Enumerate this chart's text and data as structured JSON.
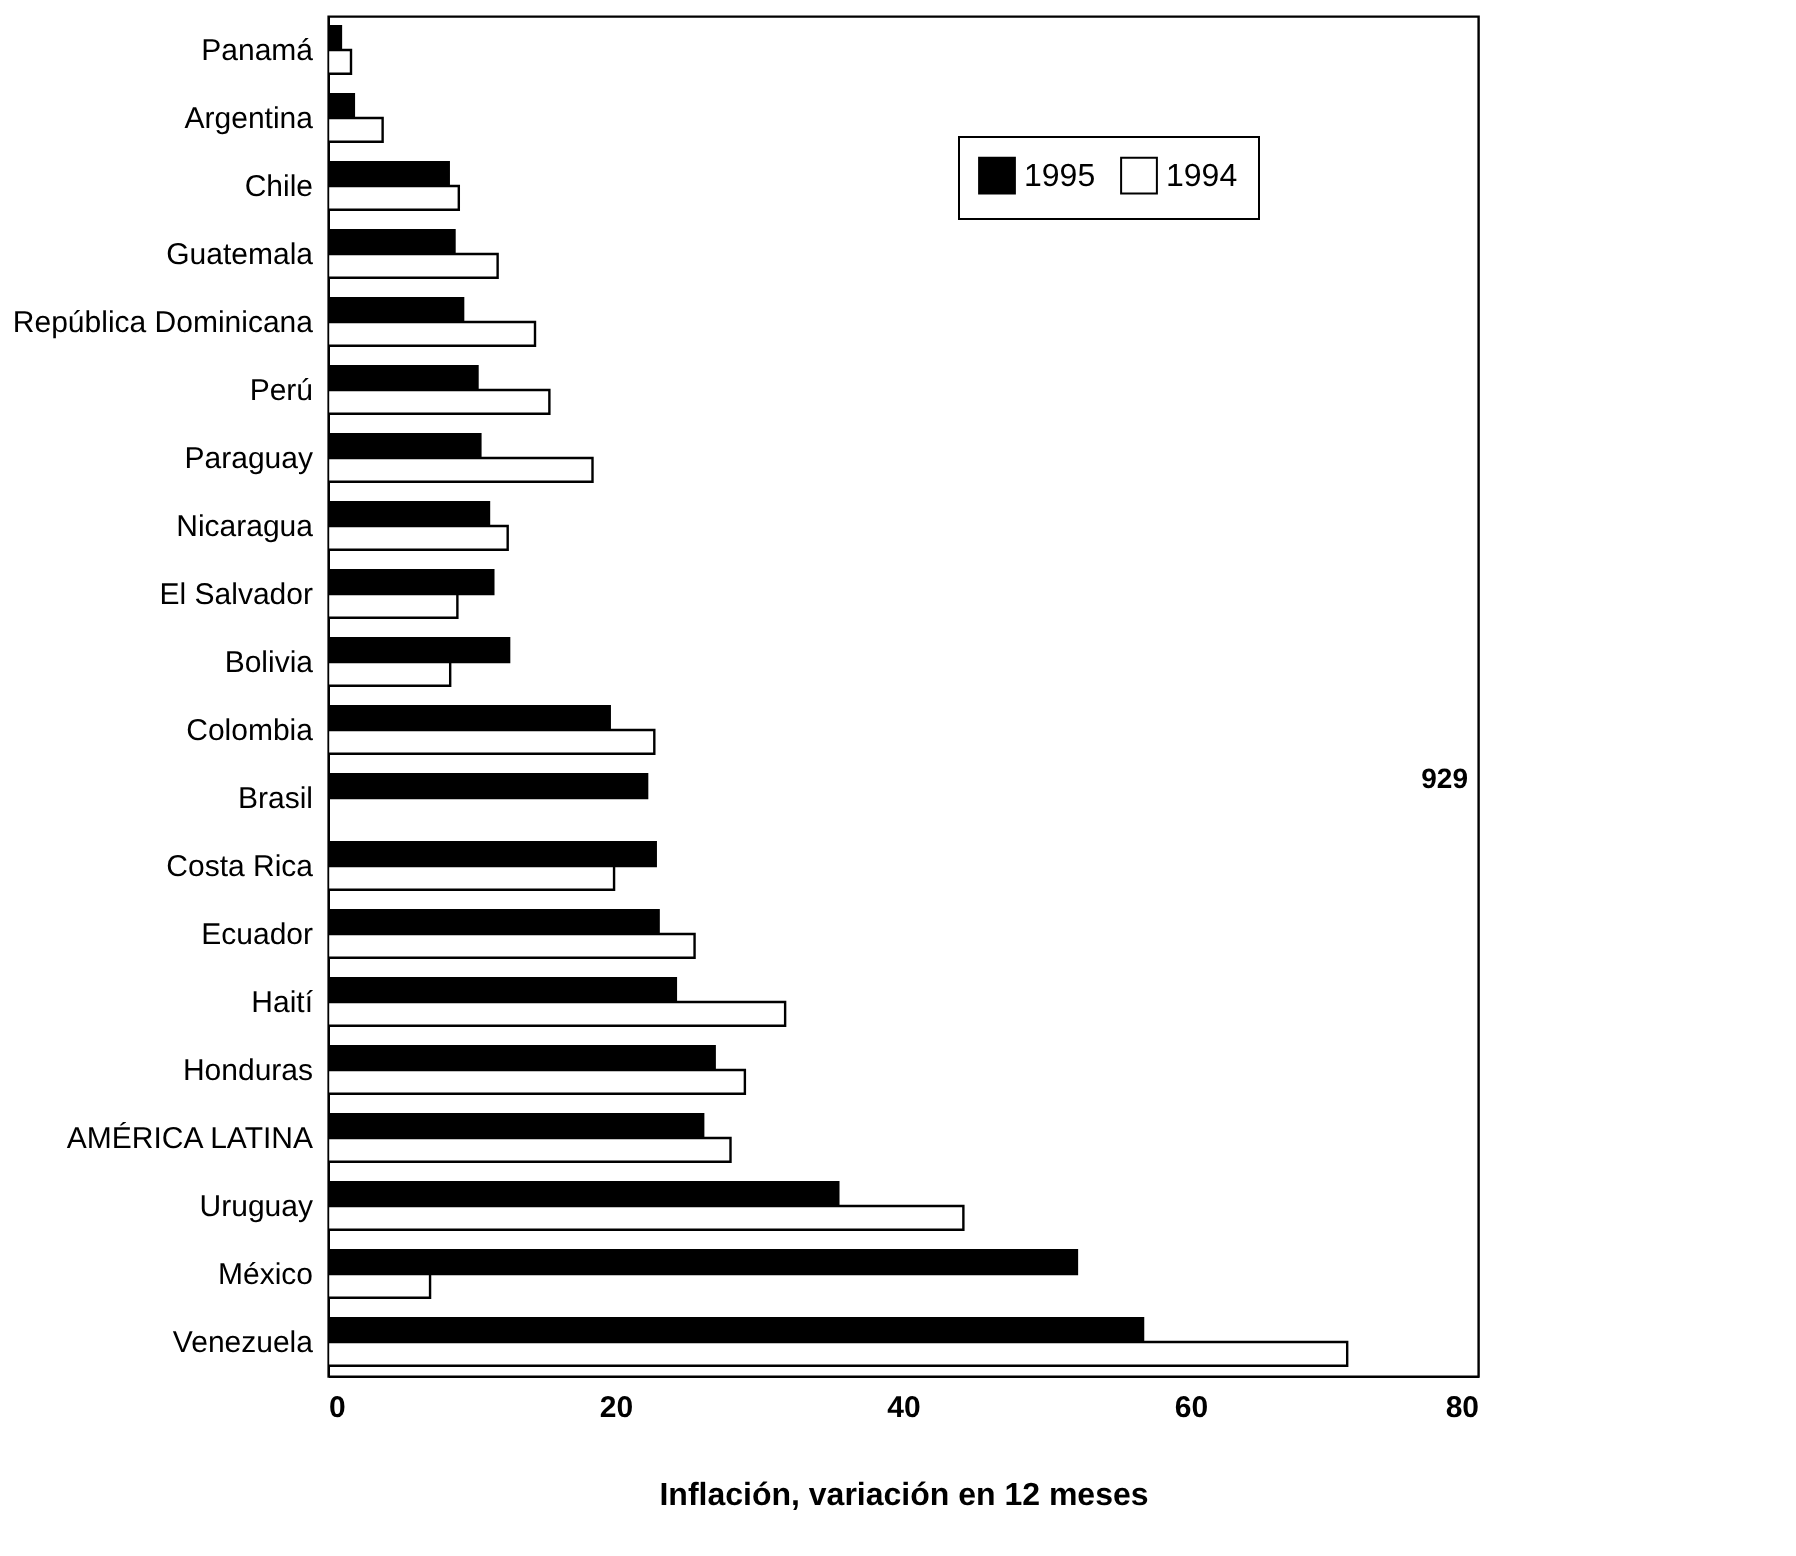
{
  "chart_data": {
    "type": "bar",
    "orientation": "horizontal",
    "xlabel": "Inflación, variación en 12 meses",
    "categories": [
      "Panamá",
      "Argentina",
      "Chile",
      "Guatemala",
      "República Dominicana",
      "Perú",
      "Paraguay",
      "Nicaragua",
      "El Salvador",
      "Bolivia",
      "Colombia",
      "Brasil",
      "Costa Rica",
      "Ecuador",
      "Haití",
      "Honduras",
      "AMÉRICA LATINA",
      "Uruguay",
      "México",
      "Venezuela"
    ],
    "series": [
      {
        "name": "1995",
        "color": "#000000",
        "values": [
          0.9,
          1.8,
          8.4,
          8.8,
          9.4,
          10.4,
          10.6,
          11.2,
          11.5,
          12.6,
          19.6,
          22.2,
          22.8,
          23.0,
          24.2,
          26.9,
          26.1,
          35.5,
          52.1,
          56.7
        ]
      },
      {
        "name": "1994",
        "color": "#ffffff",
        "values": [
          1.6,
          3.8,
          9.1,
          11.8,
          14.4,
          15.4,
          18.4,
          12.5,
          9.0,
          8.5,
          22.7,
          null,
          19.9,
          25.5,
          31.8,
          29.0,
          28.0,
          44.2,
          7.1,
          70.9
        ]
      }
    ],
    "annotations": [
      "929"
    ],
    "xlim": [
      0,
      80
    ],
    "xticks": [
      0,
      20,
      40,
      60,
      80
    ],
    "grid": false,
    "legend": "top right"
  }
}
